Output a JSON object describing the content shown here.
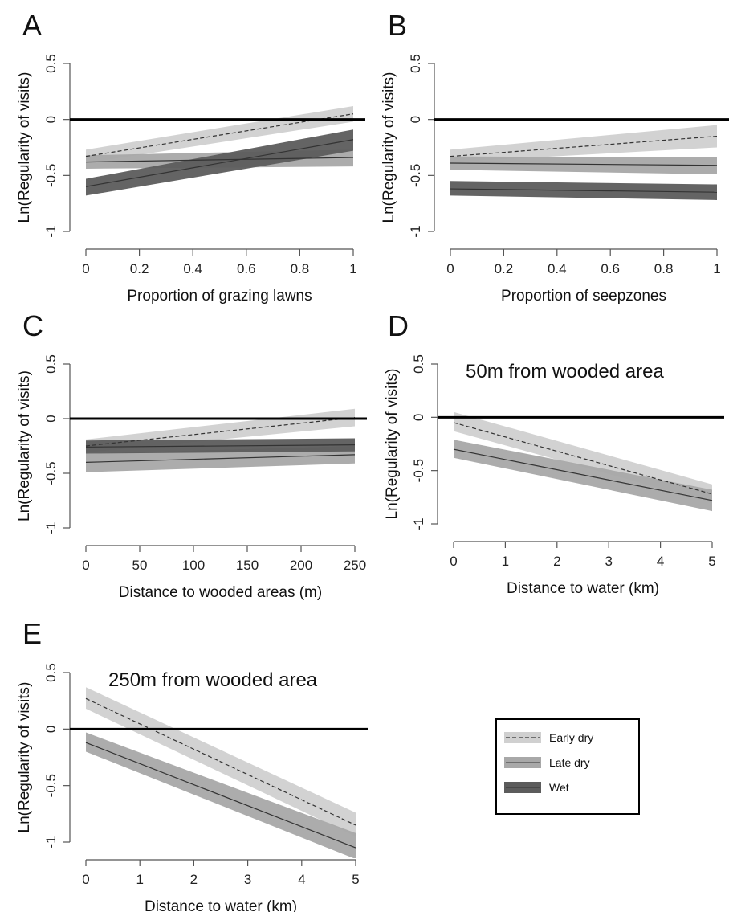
{
  "colors": {
    "early_band": "#d0d0d0",
    "late_band": "#a8a8a8",
    "wet_band": "#5c5c5c",
    "line": "#333333",
    "axis": "#555555",
    "zero_line": "#000000"
  },
  "legend": {
    "items": [
      {
        "label": "Early dry",
        "color": "#d0d0d0",
        "dashed": true
      },
      {
        "label": "Late dry",
        "color": "#a8a8a8",
        "dashed": false
      },
      {
        "label": "Wet",
        "color": "#5c5c5c",
        "dashed": false
      }
    ]
  },
  "chart_data": [
    {
      "type": "line",
      "panel": "A",
      "title": "",
      "xlabel": "Proportion of grazing lawns",
      "ylabel": "Ln(Regularity of visits)",
      "xlim": [
        0,
        1
      ],
      "ylim": [
        -1,
        0.5
      ],
      "xticks": [
        "0",
        "0.2",
        "0.4",
        "0.6",
        "0.8",
        "1"
      ],
      "yticks": [
        "0.5",
        "0",
        "-0.5",
        "-1"
      ],
      "annotation": "",
      "series": [
        {
          "name": "Early dry",
          "x": [
            0,
            1
          ],
          "y": [
            -0.33,
            0.05
          ],
          "lower": [
            -0.39,
            -0.02
          ],
          "upper": [
            -0.27,
            0.12
          ]
        },
        {
          "name": "Late dry",
          "x": [
            0,
            1
          ],
          "y": [
            -0.38,
            -0.34
          ],
          "lower": [
            -0.44,
            -0.42
          ],
          "upper": [
            -0.32,
            -0.27
          ]
        },
        {
          "name": "Wet",
          "x": [
            0,
            1
          ],
          "y": [
            -0.6,
            -0.18
          ],
          "lower": [
            -0.68,
            -0.28
          ],
          "upper": [
            -0.53,
            -0.09
          ]
        }
      ]
    },
    {
      "type": "line",
      "panel": "B",
      "title": "",
      "xlabel": "Proportion of seepzones",
      "ylabel": "Ln(Regularity of visits)",
      "xlim": [
        0,
        1
      ],
      "ylim": [
        -1,
        0.5
      ],
      "xticks": [
        "0",
        "0.2",
        "0.4",
        "0.6",
        "0.8",
        "1"
      ],
      "yticks": [
        "0.5",
        "0",
        "-0.5",
        "-1"
      ],
      "annotation": "",
      "series": [
        {
          "name": "Early dry",
          "x": [
            0,
            1
          ],
          "y": [
            -0.33,
            -0.15
          ],
          "lower": [
            -0.38,
            -0.25
          ],
          "upper": [
            -0.27,
            -0.05
          ]
        },
        {
          "name": "Late dry",
          "x": [
            0,
            1
          ],
          "y": [
            -0.39,
            -0.41
          ],
          "lower": [
            -0.45,
            -0.49
          ],
          "upper": [
            -0.33,
            -0.34
          ]
        },
        {
          "name": "Wet",
          "x": [
            0,
            1
          ],
          "y": [
            -0.62,
            -0.65
          ],
          "lower": [
            -0.68,
            -0.72
          ],
          "upper": [
            -0.55,
            -0.58
          ]
        }
      ]
    },
    {
      "type": "line",
      "panel": "C",
      "title": "",
      "xlabel": "Distance to wooded areas (m)",
      "ylabel": "Ln(Regularity of visits)",
      "xlim": [
        0,
        250
      ],
      "ylim": [
        -1,
        0.5
      ],
      "xticks": [
        "0",
        "50",
        "100",
        "150",
        "200",
        "250"
      ],
      "yticks": [
        "0.5",
        "0",
        "-0.5",
        "-1"
      ],
      "annotation": "",
      "series": [
        {
          "name": "Early dry",
          "x": [
            0,
            250
          ],
          "y": [
            -0.25,
            0.01
          ],
          "lower": [
            -0.31,
            -0.07
          ],
          "upper": [
            -0.19,
            0.09
          ]
        },
        {
          "name": "Late dry",
          "x": [
            0,
            250
          ],
          "y": [
            -0.4,
            -0.33
          ],
          "lower": [
            -0.49,
            -0.41
          ],
          "upper": [
            -0.32,
            -0.25
          ]
        },
        {
          "name": "Wet",
          "x": [
            0,
            250
          ],
          "y": [
            -0.26,
            -0.24
          ],
          "lower": [
            -0.32,
            -0.3
          ],
          "upper": [
            -0.2,
            -0.18
          ]
        }
      ]
    },
    {
      "type": "line",
      "panel": "D",
      "title": "",
      "xlabel": "Distance to water (km)",
      "ylabel": "Ln(Regularity of visits)",
      "xlim": [
        0,
        5
      ],
      "ylim": [
        -1,
        0.5
      ],
      "xticks": [
        "0",
        "1",
        "2",
        "3",
        "4",
        "5"
      ],
      "yticks": [
        "0.5",
        "0",
        "-0.5",
        "-1"
      ],
      "annotation": "50m from wooded area",
      "series": [
        {
          "name": "Early dry",
          "x": [
            0,
            3.5,
            5
          ],
          "y": [
            -0.05,
            -0.52,
            -0.72
          ],
          "lower": [
            -0.13,
            null,
            -0.8
          ],
          "upper": [
            0.05,
            null,
            -0.63
          ]
        },
        {
          "name": "Late dry",
          "x": [
            0,
            5
          ],
          "y": [
            -0.3,
            -0.78
          ],
          "lower": [
            -0.38,
            -0.88
          ],
          "upper": [
            -0.21,
            -0.68
          ]
        }
      ]
    },
    {
      "type": "line",
      "panel": "E",
      "title": "",
      "xlabel": "Distance to water (km)",
      "ylabel": "Ln(Regularity of visits)",
      "xlim": [
        0,
        5
      ],
      "ylim": [
        -1,
        0.5
      ],
      "xticks": [
        "0",
        "1",
        "2",
        "3",
        "4",
        "5"
      ],
      "yticks": [
        "0.5",
        "0",
        "-0.5",
        "-1"
      ],
      "annotation": "250m from wooded area",
      "series": [
        {
          "name": "Early dry",
          "x": [
            0,
            5
          ],
          "y": [
            0.27,
            -0.85
          ],
          "lower": [
            0.18,
            -0.95
          ],
          "upper": [
            0.37,
            -0.74
          ]
        },
        {
          "name": "Late dry",
          "x": [
            0,
            5
          ],
          "y": [
            -0.12,
            -1.05
          ],
          "lower": [
            -0.2,
            -1.15
          ],
          "upper": [
            -0.03,
            -0.92
          ]
        }
      ]
    }
  ]
}
